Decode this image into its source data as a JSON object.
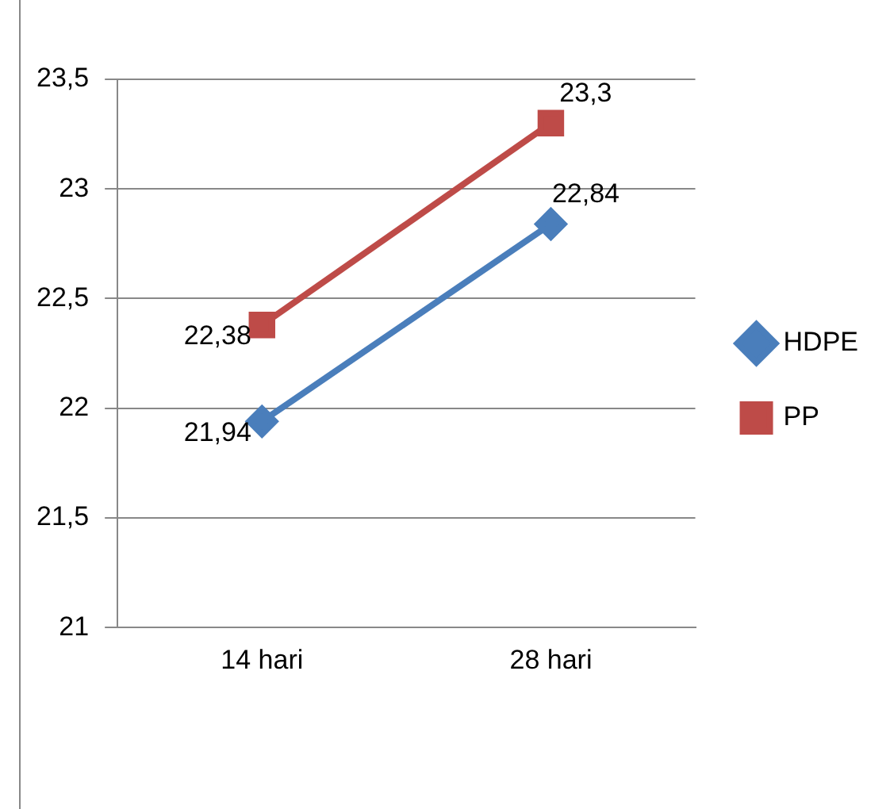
{
  "chart_data": {
    "type": "line",
    "categories": [
      "14 hari",
      "28 hari"
    ],
    "series": [
      {
        "name": "HDPE",
        "color": "#4a7ebb",
        "marker": "diamond",
        "values": [
          21.94,
          22.84
        ],
        "value_labels": [
          "21,94",
          "22,84"
        ]
      },
      {
        "name": "PP",
        "color": "#be4b48",
        "marker": "square",
        "values": [
          22.38,
          23.3
        ],
        "value_labels": [
          "22,38",
          "23,3"
        ]
      }
    ],
    "ylim": [
      21,
      23.5
    ],
    "yticks": [
      21,
      {
        "value": 21.5,
        "label": "21,5"
      },
      22,
      {
        "value": 22.5,
        "label": "22,5"
      },
      23,
      {
        "value": 23.5,
        "label": "23,5"
      }
    ],
    "grid": "y",
    "legend": "right"
  }
}
